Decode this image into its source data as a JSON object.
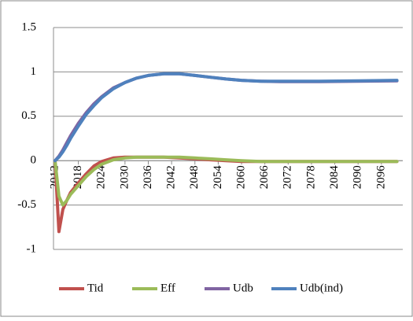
{
  "chart_data": {
    "type": "line",
    "x": [
      2012,
      2013,
      2014,
      2015,
      2016,
      2018,
      2020,
      2022,
      2024,
      2027,
      2030,
      2033,
      2036,
      2040,
      2044,
      2048,
      2052,
      2056,
      2060,
      2065,
      2070,
      2080,
      2090,
      2100
    ],
    "series": [
      {
        "name": "Tid",
        "color": "#c0504d",
        "values": [
          0,
          -0.8,
          -0.55,
          -0.45,
          -0.36,
          -0.25,
          -0.15,
          -0.06,
          -0.01,
          0.03,
          0.04,
          0.04,
          0.04,
          0.04,
          0.03,
          0.02,
          0.01,
          0,
          -0.01,
          -0.01,
          -0.01,
          -0.01,
          -0.01,
          -0.01
        ]
      },
      {
        "name": "Eff",
        "color": "#9bbb59",
        "values": [
          0,
          -0.4,
          -0.5,
          -0.45,
          -0.38,
          -0.28,
          -0.18,
          -0.1,
          -0.04,
          0.01,
          0.03,
          0.04,
          0.04,
          0.04,
          0.04,
          0.03,
          0.02,
          0.01,
          0,
          -0.01,
          -0.01,
          -0.01,
          -0.01,
          -0.01
        ]
      },
      {
        "name": "Udb",
        "color": "#8064a2",
        "values": [
          0,
          0.05,
          0.12,
          0.2,
          0.28,
          0.42,
          0.54,
          0.64,
          0.72,
          0.82,
          0.88,
          0.93,
          0.96,
          0.98,
          0.98,
          0.96,
          0.94,
          0.92,
          0.905,
          0.895,
          0.89,
          0.89,
          0.895,
          0.9
        ]
      },
      {
        "name": "Udb(ind)",
        "color": "#4f81bd",
        "values": [
          0,
          0.04,
          0.1,
          0.17,
          0.25,
          0.39,
          0.52,
          0.62,
          0.71,
          0.81,
          0.88,
          0.93,
          0.96,
          0.98,
          0.98,
          0.96,
          0.94,
          0.92,
          0.905,
          0.895,
          0.895,
          0.895,
          0.9,
          0.905
        ]
      }
    ],
    "xlim": [
      2011.6,
      2101.5
    ],
    "xticks": [
      2012,
      2018,
      2024,
      2030,
      2036,
      2042,
      2048,
      2054,
      2060,
      2066,
      2072,
      2078,
      2084,
      2090,
      2096
    ],
    "ylim": [
      -1,
      1.5
    ],
    "yticks": [
      {
        "value": 1.5,
        "label": "1.5"
      },
      1,
      0.5,
      0,
      -0.5,
      -1
    ],
    "grid": true,
    "legend": "bottom"
  }
}
